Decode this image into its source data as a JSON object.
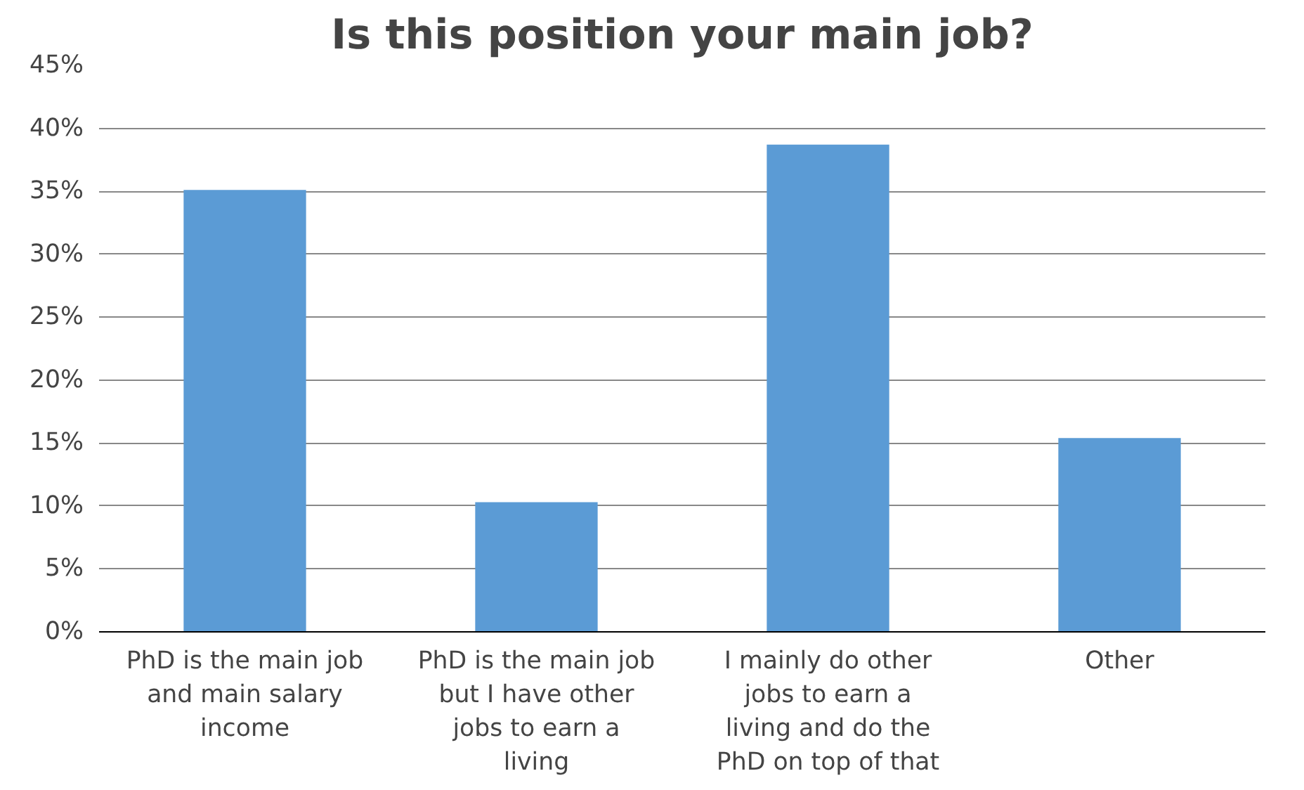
{
  "chart_data": {
    "type": "bar",
    "title": "Is this position your main job?",
    "categories": [
      "PhD is the main job and main salary income",
      "PhD is the main job but I have other jobs to earn a living",
      "I mainly do other jobs to earn a living and do the PhD on top of that",
      "Other"
    ],
    "values": [
      35.1,
      10.3,
      38.7,
      15.4
    ],
    "color": "#5b9bd5",
    "ylim": [
      0,
      45
    ],
    "yticks": [
      {
        "value": 0,
        "label": "0%"
      },
      {
        "value": 5,
        "label": "5%"
      },
      {
        "value": 10,
        "label": "10%"
      },
      {
        "value": 15,
        "label": "15%"
      },
      {
        "value": 20,
        "label": "20%"
      },
      {
        "value": 25,
        "label": "25%"
      },
      {
        "value": 30,
        "label": "30%"
      },
      {
        "value": 35,
        "label": "35%"
      },
      {
        "value": 40,
        "label": "40%"
      },
      {
        "value": 45,
        "label": "45%"
      }
    ],
    "grid": "y"
  }
}
